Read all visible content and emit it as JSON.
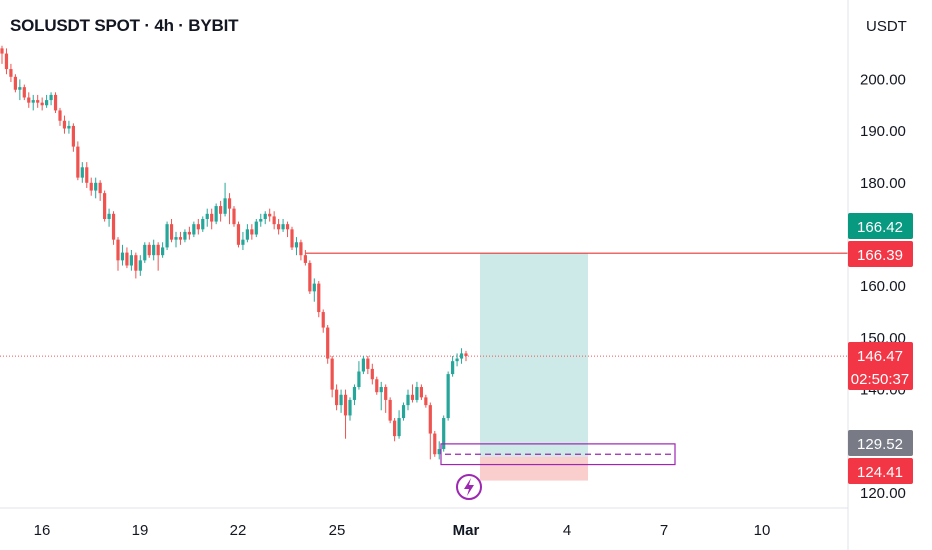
{
  "header": {
    "title": "SOLUSDT SPOT · 4h · BYBIT",
    "currency": "USDT"
  },
  "colors": {
    "up": "#26a69a",
    "down": "#ef5350",
    "target_zone": "#b2dfdb",
    "stop_zone": "#f8c9c7",
    "entry_box": "#9c27b0",
    "level_line": "#e53935",
    "tag_green": "#089981",
    "tag_red": "#f23645",
    "tag_gray": "#787b86"
  },
  "chart_data": {
    "type": "candlestick",
    "yticks": [
      120,
      130,
      140,
      150,
      160,
      170,
      180,
      190,
      200
    ],
    "yticks_shown": [
      "120.00",
      "140.00",
      "150.00",
      "160.00",
      "180.00",
      "190.00",
      "200.00"
    ],
    "xticks": [
      "16",
      "19",
      "22",
      "25",
      "Mar",
      "4",
      "7",
      "10"
    ],
    "price_tags": [
      {
        "label": "166.42",
        "value": 166.42,
        "color": "green"
      },
      {
        "label": "166.39",
        "value": 166.39,
        "color": "red"
      },
      {
        "label": "146.47",
        "sublabel": "02:50:37",
        "value": 146.47,
        "color": "red"
      },
      {
        "label": "129.52",
        "value": 129.52,
        "color": "gray"
      },
      {
        "label": "124.41",
        "value": 124.41,
        "color": "red"
      }
    ],
    "horizontal_level": 166.39,
    "current_price": 146.47,
    "position": {
      "entry": 127.0,
      "target": 166.4,
      "stop": 124.4,
      "box_top": 129.5,
      "box_bottom": 125.5
    },
    "candles": [
      [
        206.0,
        205.0,
        203.0,
        206.5
      ],
      [
        205.0,
        202.0,
        201.0,
        206.0
      ],
      [
        202.0,
        200.5,
        199.5,
        203.0
      ],
      [
        200.5,
        198.0,
        197.5,
        201.0
      ],
      [
        198.0,
        198.5,
        196.0,
        200.0
      ],
      [
        198.5,
        196.5,
        196.0,
        199.0
      ],
      [
        196.5,
        195.5,
        194.5,
        197.5
      ],
      [
        195.5,
        196.0,
        194.0,
        197.0
      ],
      [
        196.0,
        195.5,
        194.5,
        197.0
      ],
      [
        195.5,
        195.0,
        194.0,
        196.5
      ],
      [
        195.0,
        196.0,
        194.5,
        197.0
      ],
      [
        196.0,
        197.0,
        195.0,
        197.5
      ],
      [
        197.0,
        194.0,
        193.5,
        197.5
      ],
      [
        194.0,
        192.0,
        191.0,
        194.5
      ],
      [
        192.0,
        190.5,
        189.5,
        193.0
      ],
      [
        190.5,
        191.0,
        189.5,
        192.0
      ],
      [
        191.0,
        187.0,
        186.0,
        191.5
      ],
      [
        187.0,
        181.0,
        180.5,
        188.0
      ],
      [
        181.0,
        183.0,
        180.0,
        184.0
      ],
      [
        183.0,
        180.0,
        179.0,
        184.0
      ],
      [
        180.0,
        178.5,
        177.5,
        181.0
      ],
      [
        178.5,
        180.0,
        177.0,
        181.0
      ],
      [
        180.0,
        178.0,
        176.5,
        180.5
      ],
      [
        178.0,
        173.0,
        172.5,
        178.5
      ],
      [
        173.0,
        174.0,
        171.5,
        175.0
      ],
      [
        174.0,
        169.0,
        168.0,
        174.5
      ],
      [
        169.0,
        165.0,
        163.0,
        169.5
      ],
      [
        165.0,
        166.5,
        164.0,
        168.0
      ],
      [
        166.5,
        164.0,
        163.5,
        167.5
      ],
      [
        164.0,
        166.0,
        163.0,
        167.0
      ],
      [
        166.0,
        163.0,
        161.5,
        166.5
      ],
      [
        163.0,
        165.0,
        162.0,
        166.0
      ],
      [
        165.0,
        168.0,
        164.5,
        168.5
      ],
      [
        168.0,
        166.0,
        165.5,
        168.5
      ],
      [
        166.0,
        168.0,
        165.0,
        169.0
      ],
      [
        168.0,
        166.0,
        163.0,
        168.5
      ],
      [
        166.0,
        167.5,
        165.5,
        168.5
      ],
      [
        167.5,
        172.0,
        167.0,
        172.5
      ],
      [
        172.0,
        169.0,
        168.5,
        173.0
      ],
      [
        169.0,
        169.5,
        167.5,
        170.5
      ],
      [
        169.5,
        169.0,
        168.0,
        170.5
      ],
      [
        169.0,
        170.5,
        168.5,
        171.0
      ],
      [
        170.5,
        170.0,
        169.0,
        171.5
      ],
      [
        170.0,
        172.0,
        169.5,
        172.5
      ],
      [
        172.0,
        171.0,
        170.0,
        173.0
      ],
      [
        171.0,
        173.0,
        170.5,
        173.5
      ],
      [
        173.0,
        174.0,
        171.5,
        175.0
      ],
      [
        174.0,
        172.5,
        171.0,
        175.0
      ],
      [
        172.5,
        175.5,
        172.0,
        176.0
      ],
      [
        175.5,
        174.0,
        172.5,
        176.5
      ],
      [
        174.0,
        177.0,
        173.5,
        180.0
      ],
      [
        177.0,
        175.0,
        172.0,
        178.0
      ],
      [
        175.0,
        172.0,
        171.5,
        175.5
      ],
      [
        172.0,
        168.0,
        167.5,
        172.5
      ],
      [
        168.0,
        169.0,
        167.0,
        170.5
      ],
      [
        169.0,
        171.0,
        168.5,
        172.0
      ],
      [
        171.0,
        170.0,
        169.0,
        172.0
      ],
      [
        170.0,
        172.5,
        169.5,
        173.0
      ],
      [
        172.5,
        173.0,
        171.5,
        174.0
      ],
      [
        173.0,
        174.0,
        172.0,
        174.5
      ],
      [
        174.0,
        173.5,
        172.5,
        175.0
      ],
      [
        173.5,
        172.0,
        171.0,
        174.5
      ],
      [
        172.0,
        171.0,
        170.0,
        173.0
      ],
      [
        171.0,
        172.0,
        170.5,
        173.0
      ],
      [
        172.0,
        171.0,
        169.5,
        172.5
      ],
      [
        171.0,
        167.5,
        167.0,
        171.5
      ],
      [
        167.5,
        168.5,
        166.0,
        169.5
      ],
      [
        168.5,
        166.0,
        165.0,
        169.0
      ],
      [
        166.0,
        164.5,
        164.0,
        167.0
      ],
      [
        164.5,
        159.0,
        158.5,
        165.0
      ],
      [
        159.0,
        160.5,
        157.0,
        161.5
      ],
      [
        160.5,
        155.0,
        154.0,
        161.0
      ],
      [
        155.0,
        152.0,
        151.0,
        155.5
      ],
      [
        152.0,
        146.0,
        145.0,
        152.5
      ],
      [
        146.0,
        140.0,
        138.5,
        146.5
      ],
      [
        140.0,
        137.0,
        136.0,
        141.0
      ],
      [
        137.0,
        139.0,
        135.5,
        140.0
      ],
      [
        139.0,
        135.0,
        130.5,
        140.0
      ],
      [
        135.0,
        138.0,
        134.0,
        138.5
      ],
      [
        138.0,
        140.5,
        137.0,
        141.0
      ],
      [
        140.5,
        143.5,
        140.0,
        145.5
      ],
      [
        143.5,
        146.0,
        143.0,
        146.5
      ],
      [
        146.0,
        144.0,
        143.0,
        146.5
      ],
      [
        144.0,
        142.0,
        141.0,
        145.0
      ],
      [
        142.0,
        139.5,
        139.0,
        142.5
      ],
      [
        139.5,
        140.5,
        136.0,
        141.5
      ],
      [
        140.5,
        138.0,
        135.5,
        141.0
      ],
      [
        138.0,
        134.0,
        133.5,
        138.5
      ],
      [
        134.0,
        131.0,
        130.0,
        134.5
      ],
      [
        131.0,
        134.5,
        130.5,
        136.0
      ],
      [
        134.5,
        137.0,
        134.0,
        137.5
      ],
      [
        137.0,
        139.0,
        136.0,
        140.0
      ],
      [
        139.0,
        138.0,
        137.5,
        141.0
      ],
      [
        138.0,
        140.5,
        137.5,
        141.5
      ],
      [
        140.5,
        138.5,
        138.0,
        141.0
      ],
      [
        138.5,
        137.0,
        136.5,
        139.0
      ],
      [
        137.0,
        131.5,
        126.5,
        137.5
      ],
      [
        131.5,
        127.5,
        127.0,
        132.0
      ],
      [
        127.5,
        128.5,
        126.5,
        130.0
      ],
      [
        128.5,
        134.5,
        128.0,
        135.0
      ],
      [
        134.5,
        143.0,
        134.0,
        143.5
      ],
      [
        143.0,
        145.5,
        142.5,
        146.5
      ],
      [
        145.5,
        146.0,
        144.5,
        147.0
      ],
      [
        146.0,
        147.0,
        145.0,
        148.0
      ],
      [
        147.0,
        146.5,
        145.5,
        147.5
      ]
    ]
  }
}
